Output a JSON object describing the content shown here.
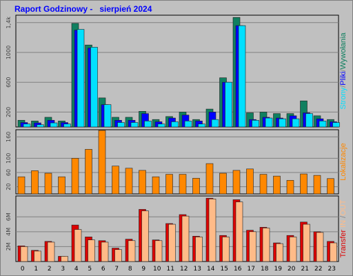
{
  "title": "Raport Godzinowy -   sierpień 2024",
  "colors": {
    "background": "#c0c0c0",
    "plot_bg": "#c0c0c0",
    "grid": "#808080",
    "title": "#0000ff",
    "strony": "#108060",
    "pliki": "#0000ff",
    "wywolania": "#00e0ff",
    "lokalizacje": "#ff8800",
    "transfer": "#dd0000",
    "in_out": "#ffbb88"
  },
  "chart_data": [
    {
      "type": "bar",
      "panel": "hits",
      "x": [
        0,
        1,
        2,
        3,
        4,
        5,
        6,
        7,
        8,
        9,
        10,
        11,
        12,
        13,
        14,
        15,
        16,
        17,
        18,
        19,
        20,
        21,
        22,
        23
      ],
      "yticks": [
        "200",
        "600",
        "1000",
        "1,4k"
      ],
      "ytick_values": [
        200,
        600,
        1000,
        1400
      ],
      "ylim": [
        0,
        1500
      ],
      "right_label_parts": [
        {
          "text": "Strony",
          "color": "#00e0ff"
        },
        {
          "text": "/",
          "color": "#808080"
        },
        {
          "text": "Pliki",
          "color": "#0000ff"
        },
        {
          "text": "/",
          "color": "#808080"
        },
        {
          "text": "Wywołania",
          "color": "#108060"
        }
      ],
      "series": [
        {
          "name": "Wywołania",
          "color": "#108060",
          "values": [
            90,
            80,
            130,
            80,
            1390,
            1100,
            390,
            130,
            130,
            210,
            100,
            140,
            200,
            100,
            240,
            660,
            1470,
            190,
            200,
            180,
            180,
            350,
            150,
            100
          ]
        },
        {
          "name": "Pliki",
          "color": "#0000ff",
          "values": [
            60,
            55,
            90,
            60,
            1300,
            1060,
            300,
            90,
            90,
            180,
            70,
            120,
            160,
            80,
            200,
            600,
            1360,
            100,
            130,
            120,
            150,
            190,
            110,
            70
          ]
        },
        {
          "name": "Strony",
          "color": "#00e0ff",
          "values": [
            40,
            30,
            55,
            40,
            1310,
            1070,
            300,
            60,
            60,
            80,
            40,
            70,
            80,
            40,
            100,
            600,
            1360,
            90,
            120,
            110,
            110,
            180,
            80,
            60
          ]
        }
      ]
    },
    {
      "type": "bar",
      "panel": "locations",
      "x": [
        0,
        1,
        2,
        3,
        4,
        5,
        6,
        7,
        8,
        9,
        10,
        11,
        12,
        13,
        14,
        15,
        16,
        17,
        18,
        19,
        20,
        21,
        22,
        23
      ],
      "yticks": [
        "20",
        "60",
        "100",
        "160"
      ],
      "ytick_values": [
        20,
        60,
        100,
        160
      ],
      "ylim": [
        0,
        180
      ],
      "right_label_parts": [
        {
          "text": "Lokalizacje",
          "color": "#ff8800"
        }
      ],
      "series": [
        {
          "name": "Lokalizacje",
          "color": "#ff8800",
          "values": [
            48,
            65,
            58,
            48,
            100,
            125,
            178,
            78,
            72,
            66,
            48,
            55,
            55,
            44,
            85,
            58,
            66,
            70,
            55,
            50,
            38,
            56,
            52,
            43
          ]
        }
      ]
    },
    {
      "type": "bar",
      "panel": "transfer",
      "x": [
        0,
        1,
        2,
        3,
        4,
        5,
        6,
        7,
        8,
        9,
        10,
        11,
        12,
        13,
        14,
        15,
        16,
        17,
        18,
        19,
        20,
        21,
        22,
        23
      ],
      "yticks": [
        "2M",
        "4M",
        "6M"
      ],
      "ytick_values": [
        2,
        4,
        6
      ],
      "ylim": [
        0,
        8.8
      ],
      "right_label_parts": [
        {
          "text": "Transfer",
          "color": "#dd0000"
        },
        {
          "text": "  IN ",
          "color": "#ffbb88"
        },
        {
          "text": "/",
          "color": "#808080"
        },
        {
          "text": "OUT",
          "color": "#ffbb88"
        }
      ],
      "series": [
        {
          "name": "Transfer",
          "color": "#dd0000",
          "values": [
            2.1,
            1.5,
            2.7,
            0.7,
            4.9,
            3.3,
            2.8,
            1.8,
            3.0,
            7.0,
            2.9,
            5.1,
            6.3,
            3.4,
            8.5,
            3.5,
            8.3,
            4.2,
            4.6,
            2.5,
            3.5,
            5.3,
            4.0,
            2.7
          ]
        },
        {
          "name": "IN/OUT",
          "color": "#ffbb88",
          "values": [
            2.0,
            1.4,
            2.6,
            0.7,
            4.3,
            2.9,
            2.6,
            1.6,
            2.8,
            6.8,
            2.8,
            5.0,
            6.1,
            3.3,
            8.4,
            3.3,
            8.0,
            4.0,
            4.5,
            2.4,
            3.3,
            5.0,
            3.9,
            2.5
          ]
        }
      ]
    }
  ]
}
